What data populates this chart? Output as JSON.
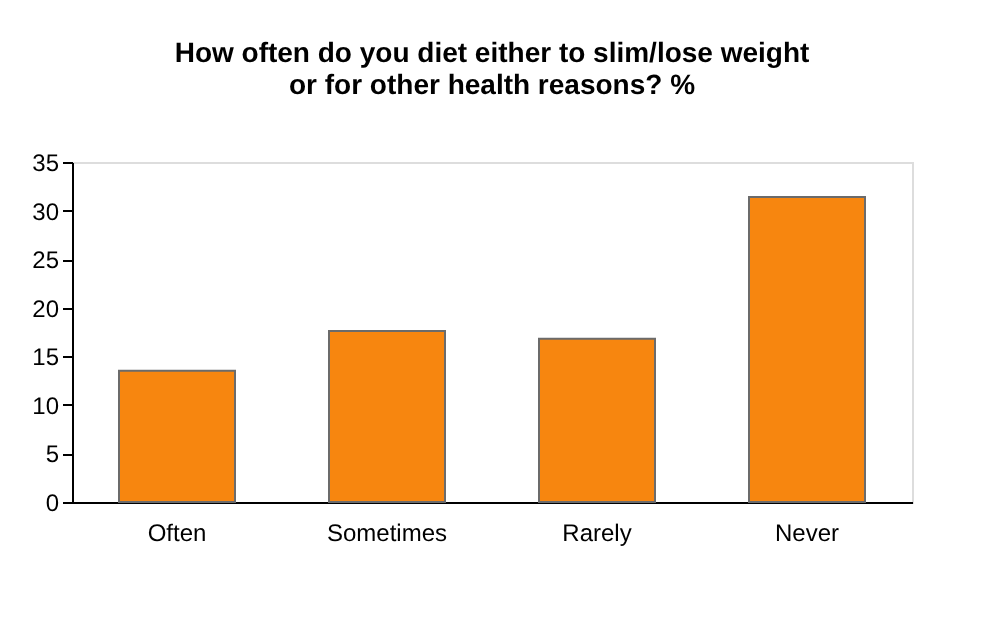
{
  "chart_data": {
    "type": "bar",
    "title": [
      "How often do you diet either to slim/lose weight",
      "or for other health reasons? %"
    ],
    "categories": [
      "Often",
      "Sometimes",
      "Rarely",
      "Never"
    ],
    "values": [
      13.5,
      17.6,
      16.8,
      31.4
    ],
    "color": "#f7860f",
    "ylim": [
      0,
      35
    ],
    "yticks": [
      0,
      5,
      10,
      15,
      20,
      25,
      30,
      35
    ],
    "grid": false
  }
}
